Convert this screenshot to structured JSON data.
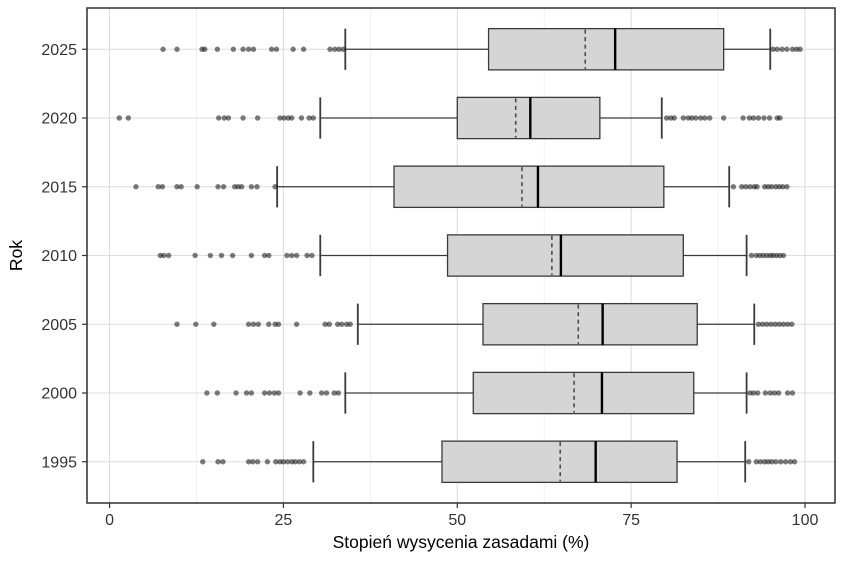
{
  "chart_data": {
    "type": "boxplot",
    "orientation": "horizontal",
    "title": "",
    "xlabel": "Stopień wysycenia zasadami (%)",
    "ylabel": "Rok",
    "xlim": [
      -3.24,
      104.31
    ],
    "x_ticks": [
      0,
      25,
      50,
      75,
      100
    ],
    "x_tick_labels": [
      "0",
      "25",
      "50",
      "75",
      "100"
    ],
    "x_minor_ticks": [
      12.5,
      37.5,
      62.5,
      87.5
    ],
    "grid": true,
    "legend": "none",
    "categories_top_to_bottom": [
      "2025",
      "2020",
      "2015",
      "2010",
      "2005",
      "2000",
      "1995"
    ],
    "series": [
      {
        "year": "2025",
        "lower_whisker": 33.9,
        "q1": 54.5,
        "mean": 68.4,
        "median": 72.7,
        "q3": 88.3,
        "upper_whisker": 95.0,
        "outliers_low": [
          7.7,
          9.7,
          13.3,
          13.7,
          15.5,
          17.8,
          19.2,
          20.0,
          20.7,
          23.3,
          24.0,
          26.4,
          27.9,
          31.7,
          32.4,
          33.0,
          33.6
        ],
        "outliers_high": [
          95.4,
          96.0,
          96.7,
          97.4,
          98.2,
          98.8,
          99.3
        ]
      },
      {
        "year": "2020",
        "lower_whisker": 30.3,
        "q1": 50.0,
        "mean": 58.4,
        "median": 60.5,
        "q3": 70.5,
        "upper_whisker": 79.4,
        "outliers_low": [
          1.4,
          2.7,
          15.7,
          16.5,
          17.1,
          19.2,
          21.3,
          24.5,
          25.1,
          25.7,
          26.2,
          27.6,
          28.7,
          29.3
        ],
        "outliers_high": [
          80.1,
          80.7,
          81.2,
          82.5,
          83.2,
          83.7,
          84.3,
          85.0,
          85.6,
          86.3,
          88.3,
          91.1,
          92.0,
          92.6,
          93.3,
          94.1,
          94.9,
          96.0,
          96.4
        ]
      },
      {
        "year": "2015",
        "lower_whisker": 24.1,
        "q1": 40.9,
        "mean": 59.3,
        "median": 61.6,
        "q3": 79.7,
        "upper_whisker": 89.1,
        "outliers_low": [
          3.8,
          7.0,
          7.6,
          9.7,
          10.3,
          12.6,
          15.6,
          16.4,
          18.0,
          18.5,
          19.0,
          20.4,
          21.2,
          23.8
        ],
        "outliers_high": [
          89.7,
          90.9,
          91.5,
          92.1,
          92.7,
          93.1,
          94.2,
          94.7,
          95.2,
          95.8,
          96.3,
          96.8,
          97.4
        ]
      },
      {
        "year": "2010",
        "lower_whisker": 30.3,
        "q1": 48.6,
        "mean": 63.6,
        "median": 64.9,
        "q3": 82.5,
        "upper_whisker": 91.6,
        "outliers_low": [
          7.3,
          7.8,
          8.5,
          12.3,
          14.5,
          16.1,
          17.7,
          20.4,
          22.3,
          22.9,
          25.5,
          26.2,
          26.9,
          28.4,
          29.1
        ],
        "outliers_high": [
          92.3,
          93.0,
          93.5,
          94.0,
          94.5,
          95.0,
          95.4,
          95.9,
          96.4,
          96.9
        ]
      },
      {
        "year": "2005",
        "lower_whisker": 35.7,
        "q1": 53.7,
        "mean": 67.4,
        "median": 70.9,
        "q3": 84.5,
        "upper_whisker": 92.7,
        "outliers_low": [
          9.7,
          12.4,
          15.0,
          20.0,
          20.7,
          21.4,
          22.9,
          23.8,
          24.3,
          26.9,
          31.0,
          31.6,
          32.8,
          33.4,
          34.1,
          34.6
        ],
        "outliers_high": [
          93.3,
          93.9,
          94.5,
          95.1,
          95.7,
          96.3,
          96.9,
          97.5,
          98.1
        ]
      },
      {
        "year": "2000",
        "lower_whisker": 33.9,
        "q1": 52.3,
        "mean": 66.8,
        "median": 70.8,
        "q3": 84.0,
        "upper_whisker": 91.6,
        "outliers_low": [
          14.0,
          15.5,
          18.2,
          19.7,
          20.4,
          22.3,
          23.0,
          23.7,
          24.3,
          27.4,
          28.8,
          30.5,
          31.2,
          32.3,
          32.9
        ],
        "outliers_high": [
          92.1,
          92.6,
          93.2,
          94.3,
          95.0,
          95.6,
          96.2,
          97.5,
          98.2
        ]
      },
      {
        "year": "1995",
        "lower_whisker": 29.3,
        "q1": 47.8,
        "mean": 64.8,
        "median": 69.9,
        "q3": 81.6,
        "upper_whisker": 91.4,
        "outliers_low": [
          13.4,
          15.6,
          16.3,
          20.0,
          20.6,
          21.3,
          22.7,
          23.9,
          24.5,
          25.0,
          25.6,
          26.2,
          26.7,
          27.3,
          27.9
        ],
        "outliers_high": [
          91.9,
          93.0,
          93.6,
          94.2,
          94.7,
          95.2,
          95.8,
          96.5,
          97.2,
          97.9,
          98.5
        ]
      }
    ],
    "style": {
      "panel_background": "#ffffff",
      "panel_border": "#2f2f2f",
      "grid_major": "#dedede",
      "grid_minor": "#efefef",
      "box_fill": "#d5d5d5",
      "box_stroke": "#3a3a3a",
      "median_color": "#000000",
      "mean_color": "#4d4d4d",
      "mean_dash": "4,3.5",
      "whisker_color": "#3a3a3a",
      "point_color": "#111111",
      "point_opacity": 0.55,
      "tick_color": "#333333",
      "label_color": "#333333",
      "title_color": "#000000"
    }
  }
}
